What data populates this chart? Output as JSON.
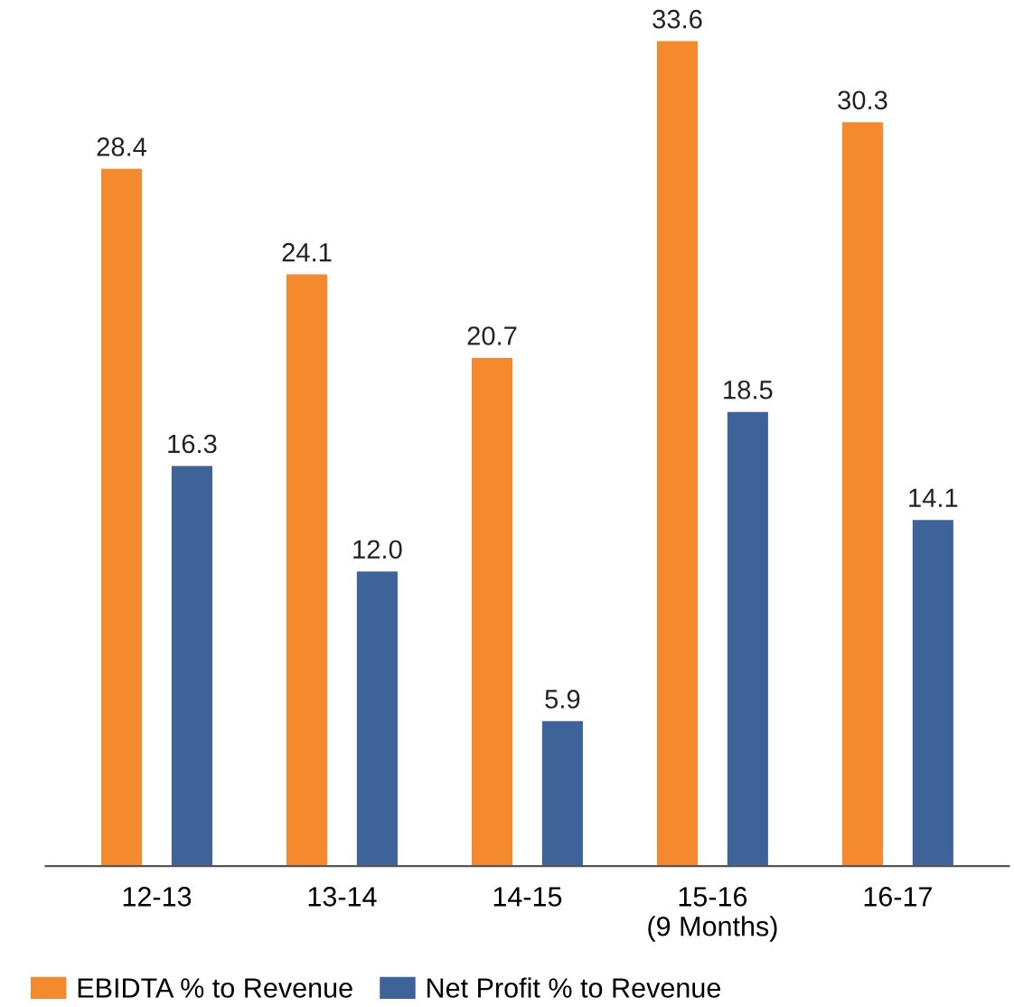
{
  "chart_data": {
    "type": "bar",
    "categories": [
      "12-13",
      "13-14",
      "14-15",
      "15-16\n(9 Months)",
      "16-17"
    ],
    "series": [
      {
        "name": "EBIDTA % to Revenue",
        "color": "#f5892e",
        "values": [
          28.4,
          24.1,
          20.7,
          33.6,
          30.3
        ],
        "value_labels": [
          "28.4",
          "24.1",
          "20.7",
          "33.6",
          "30.3"
        ]
      },
      {
        "name": "Net Profit % to Revenue",
        "color": "#3e6398",
        "values": [
          16.3,
          12.0,
          5.9,
          18.5,
          14.1
        ],
        "value_labels": [
          "16.3",
          "12.0",
          "5.9",
          "18.5",
          "14.1"
        ]
      }
    ],
    "legend": "bottom left",
    "tick_labels": "x"
  }
}
